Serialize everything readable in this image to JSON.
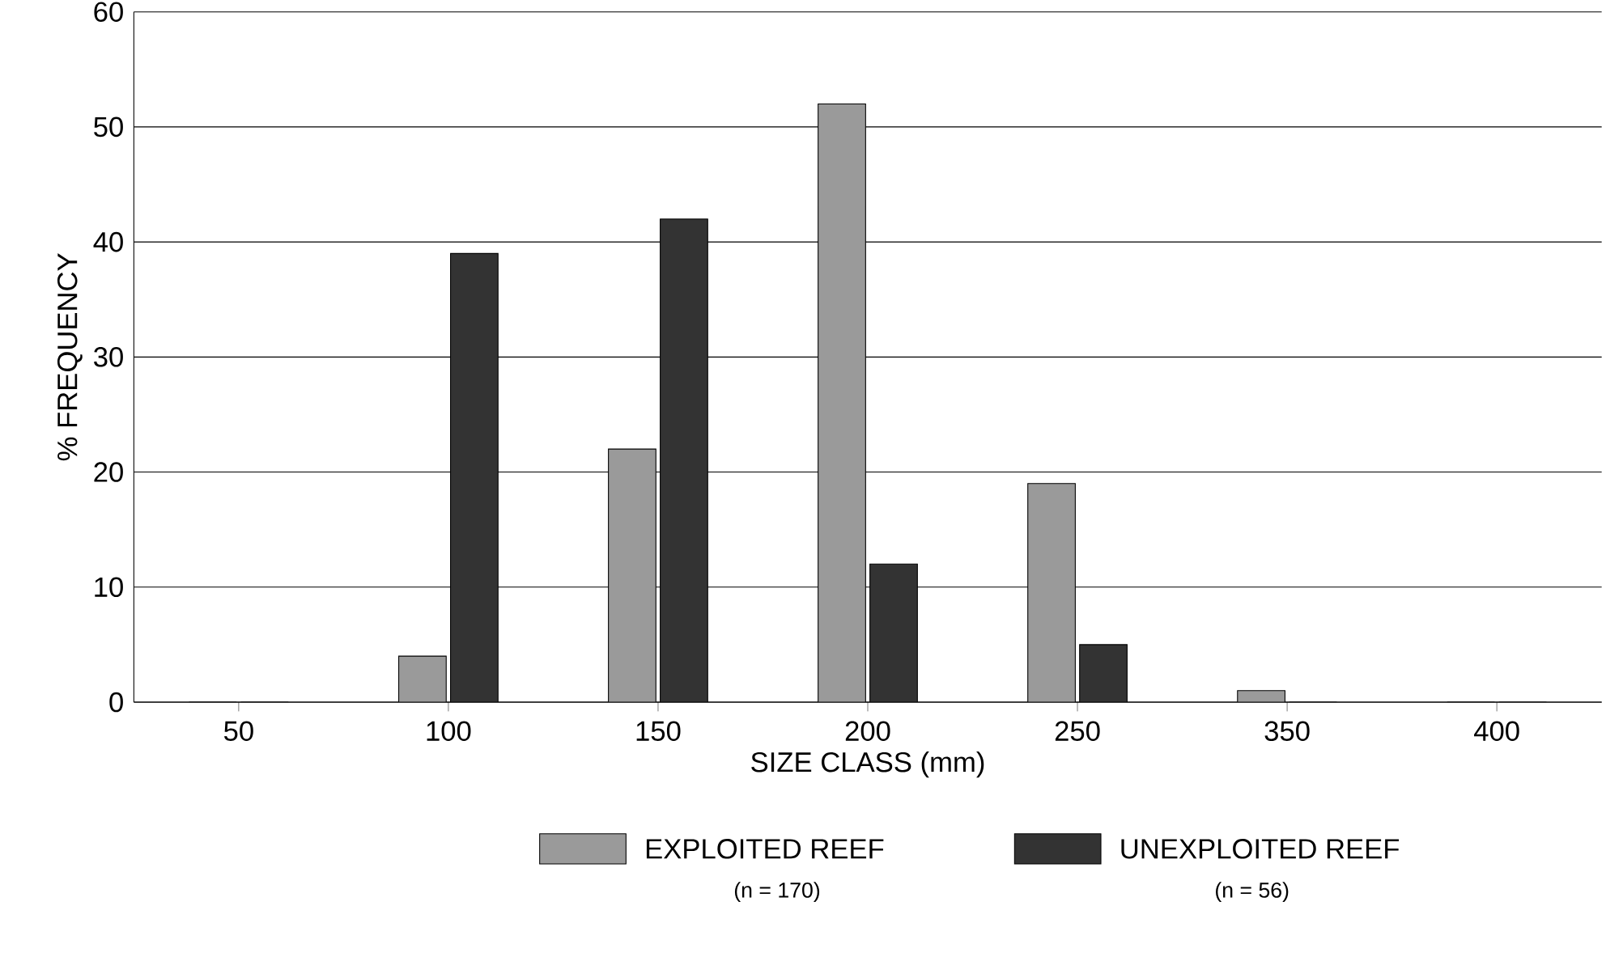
{
  "chart_data": {
    "type": "bar",
    "xlabel": "SIZE CLASS (mm)",
    "ylabel": "% FREQUENCY",
    "categories": [
      "50",
      "100",
      "150",
      "200",
      "250",
      "350",
      "400"
    ],
    "series": [
      {
        "name": "EXPLOITED REEF",
        "color": "#9a9a9a",
        "values": [
          0,
          4,
          22,
          52,
          19,
          1,
          0
        ]
      },
      {
        "name": "UNEXPLOITED REEF",
        "color": "#333333",
        "values": [
          0,
          39,
          42,
          12,
          5,
          0,
          0
        ]
      }
    ],
    "ylim": [
      0,
      60
    ],
    "yticks": [
      0,
      10,
      20,
      30,
      40,
      50,
      60
    ],
    "grid": "y",
    "legend": "bottom",
    "annotations": [
      "(n = 170)",
      "(n = 56)"
    ]
  }
}
